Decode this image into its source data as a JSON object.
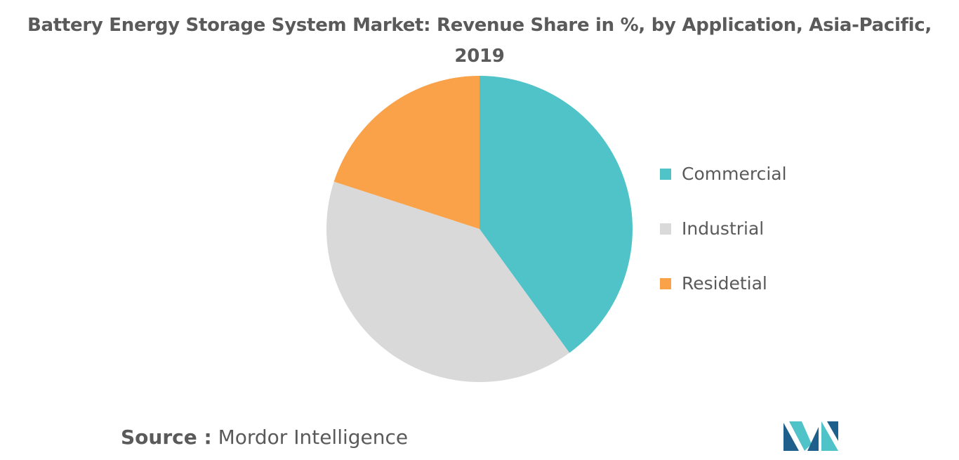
{
  "title_line1": "Battery Energy Storage System Market: Revenue Share in %, by Application, Asia-Pacific,",
  "title_line2": "2019",
  "source": {
    "label": "Source :",
    "value": "Mordor Intelligence"
  },
  "colors": {
    "commercial": "#4fc3c8",
    "industrial": "#d9d9d9",
    "residential": "#f9a24a",
    "logo_dark": "#1f5f8b",
    "logo_light": "#4fc3c8"
  },
  "logo_icon": "mordor-intelligence-logo",
  "chart_data": {
    "type": "pie",
    "title": "Battery Energy Storage System Market: Revenue Share in %, by Application, Asia-Pacific, 2019",
    "legend_position": "right",
    "slices": [
      {
        "label": "Commercial",
        "value": 40,
        "color": "#4fc3c8"
      },
      {
        "label": "Industrial",
        "value": 40,
        "color": "#d9d9d9"
      },
      {
        "label": "Residetial",
        "value": 20,
        "color": "#f9a24a"
      }
    ]
  }
}
